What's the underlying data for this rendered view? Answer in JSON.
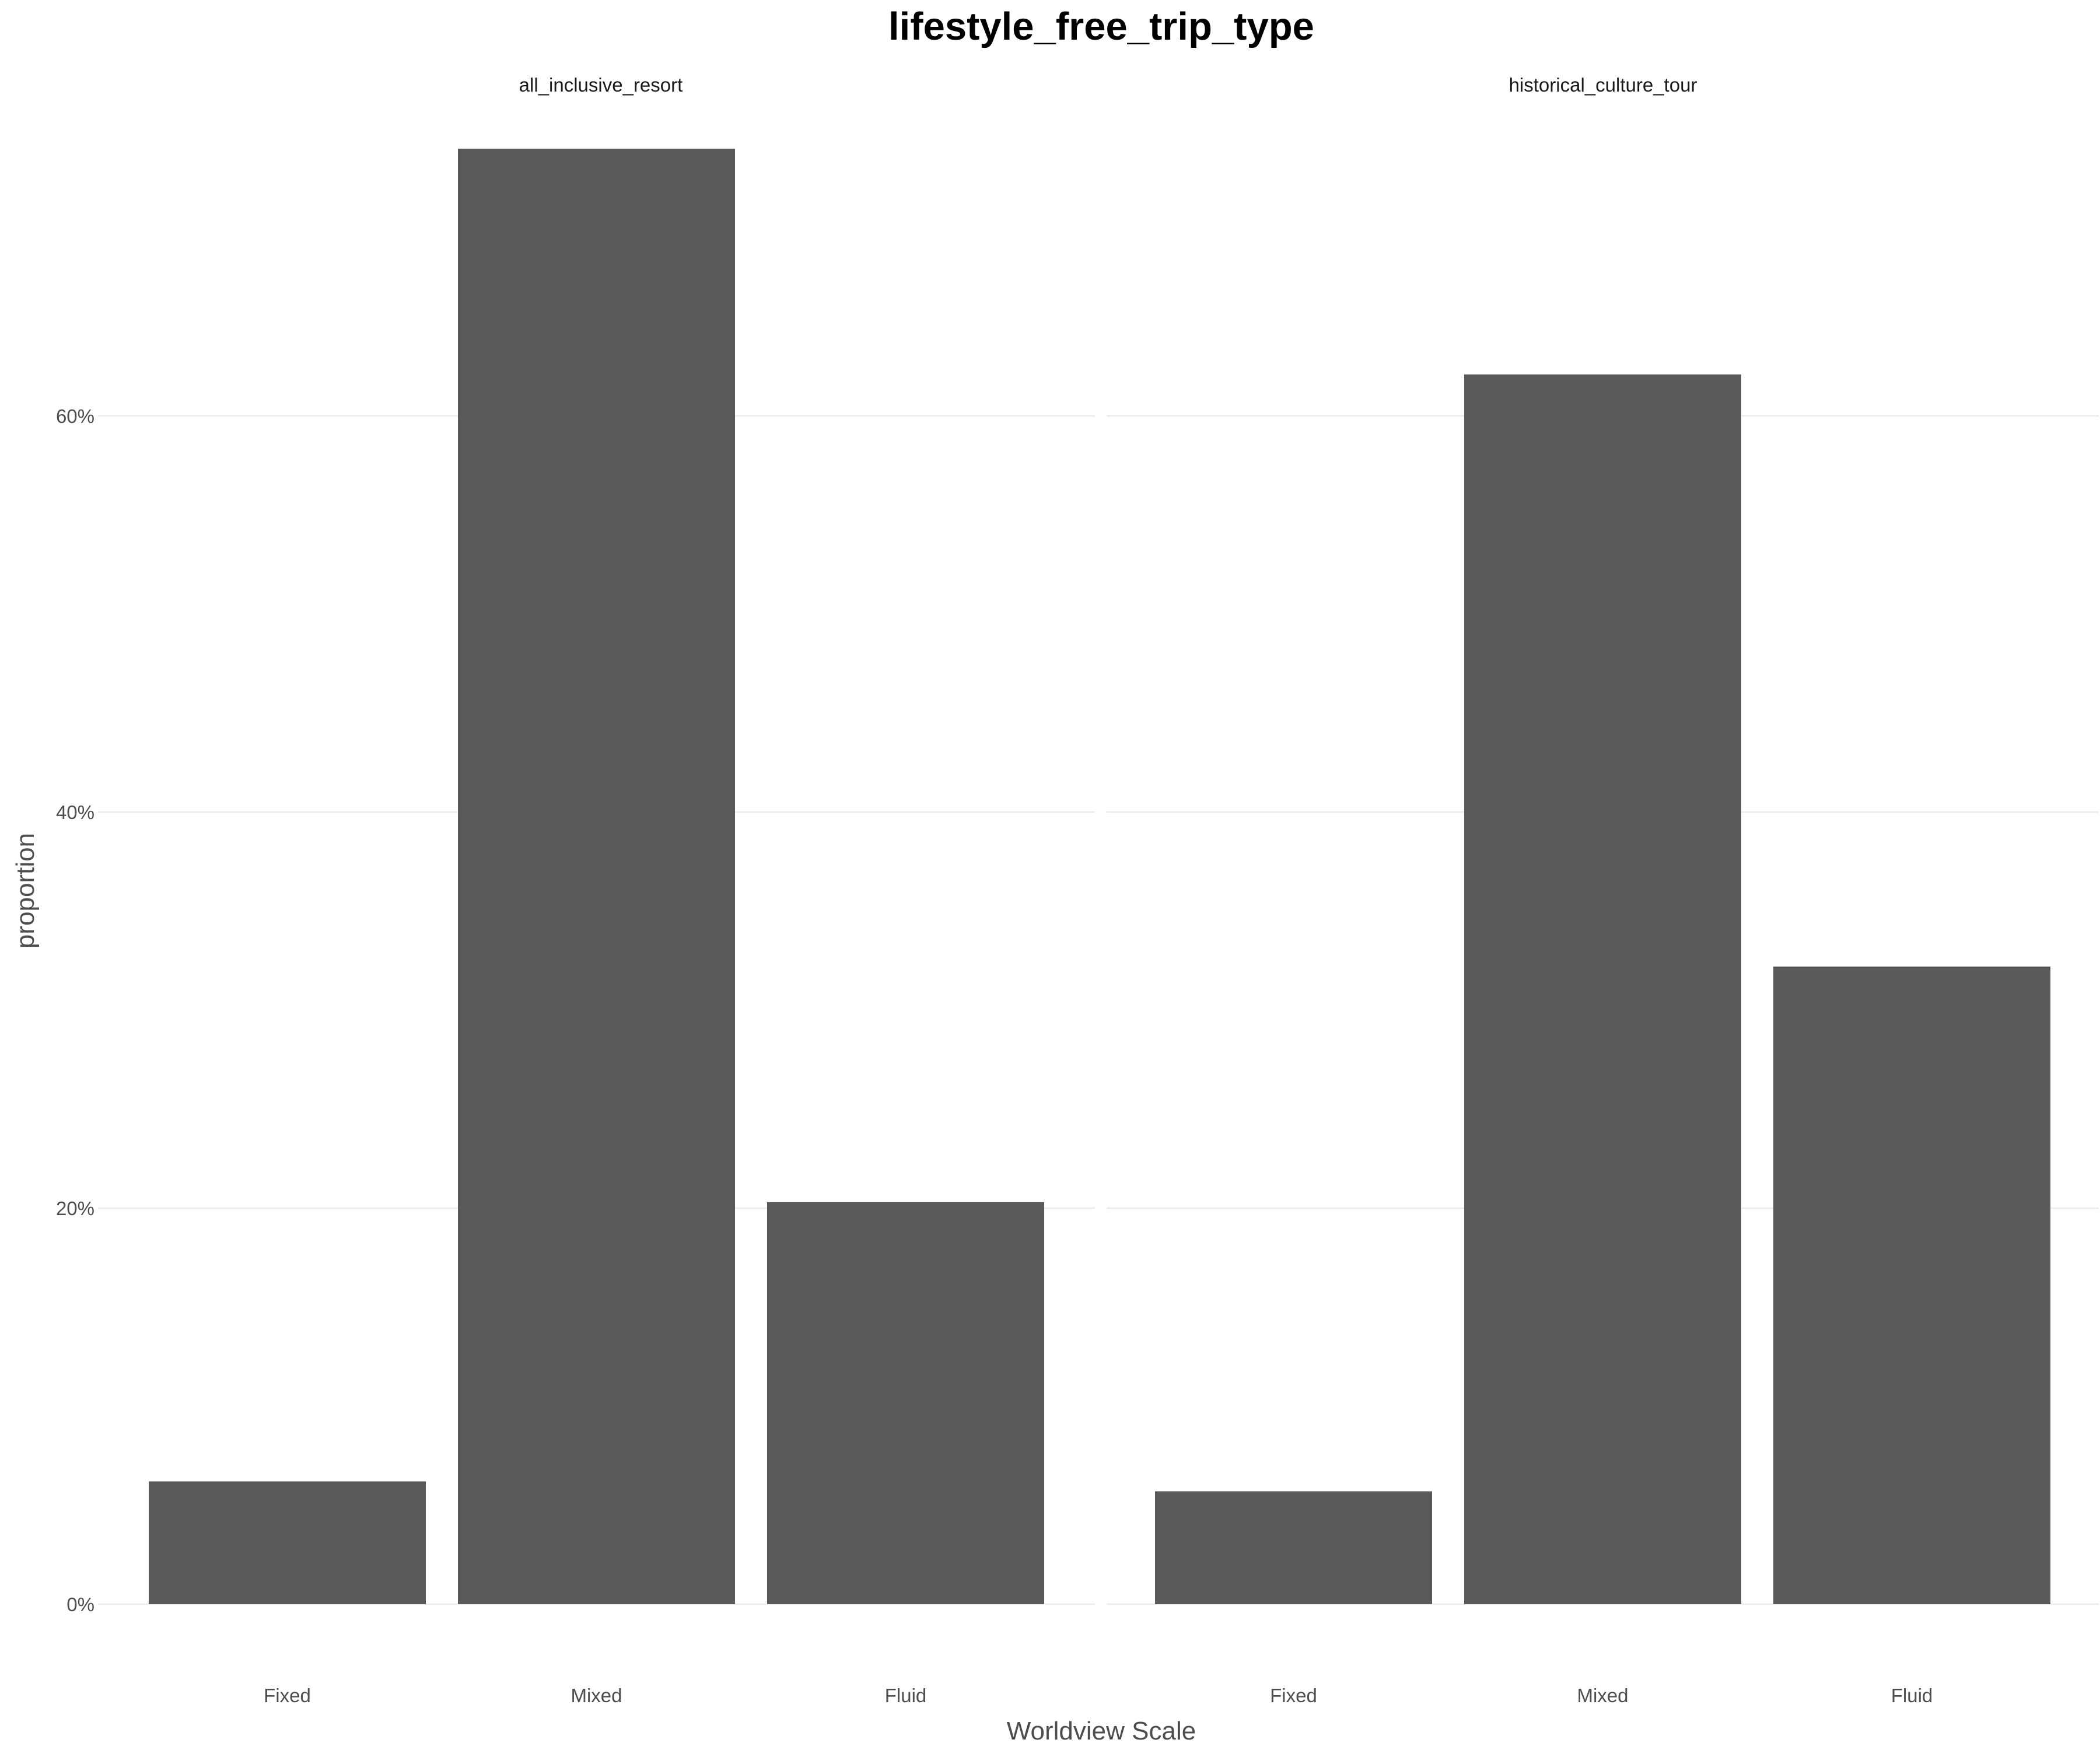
{
  "chart_data": {
    "type": "bar",
    "title": "lifestyle_free_trip_type",
    "xlabel": "Worldview Scale",
    "ylabel": "proportion",
    "categories": [
      "Fixed",
      "Mixed",
      "Fluid"
    ],
    "y_ticks": [
      0,
      20,
      40,
      60
    ],
    "y_tick_labels": [
      "0%",
      "20%",
      "40%",
      "60%"
    ],
    "ylim": [
      0,
      76
    ],
    "grid": true,
    "legend": "none",
    "bar_color": "#595959",
    "facets": [
      {
        "name": "all_inclusive_resort",
        "values": [
          6.2,
          73.5,
          20.3
        ]
      },
      {
        "name": "historical_culture_tour",
        "values": [
          5.7,
          62.1,
          32.2
        ]
      }
    ]
  }
}
